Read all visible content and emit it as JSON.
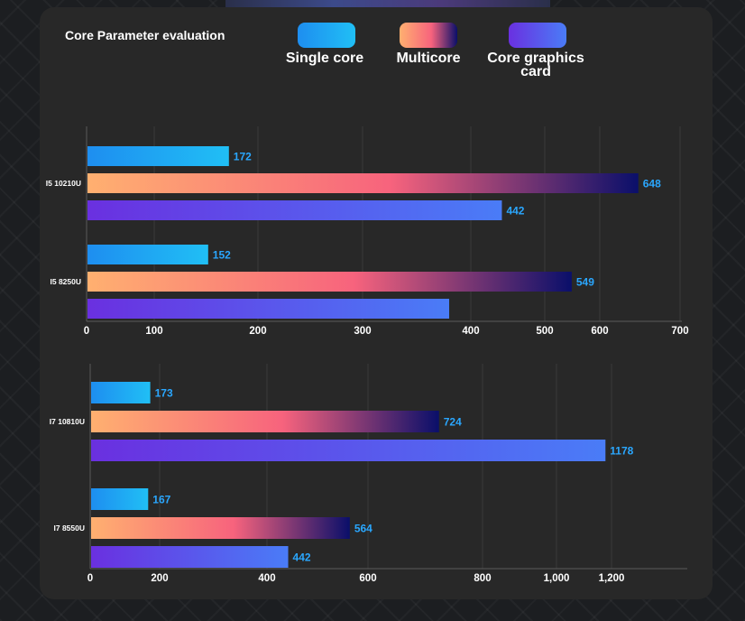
{
  "title": "Core Parameter evaluation",
  "legend": [
    {
      "label": "Single core"
    },
    {
      "label": "Multicore"
    },
    {
      "label": "Core graphics card"
    }
  ],
  "colors": {
    "single": [
      "#1e8ef0",
      "#20bff5"
    ],
    "multi": [
      "#ffb070",
      "#f7637d",
      "#0a0f6a"
    ],
    "gpu": [
      "#6a30e0",
      "#4a7cf7"
    ]
  },
  "chart_data": [
    {
      "type": "bar",
      "orientation": "horizontal",
      "categories": [
        "I5 10210U",
        "I5 8250U"
      ],
      "series": [
        {
          "name": "Single core",
          "values": [
            172,
            152
          ],
          "labels": [
            "172",
            "152"
          ]
        },
        {
          "name": "Multicore",
          "values": [
            648,
            549
          ],
          "labels": [
            "648",
            "549"
          ]
        },
        {
          "name": "Core graphics card",
          "values": [
            442,
            380
          ],
          "labels": [
            "442",
            ""
          ]
        }
      ],
      "ticks": [
        {
          "value": 0,
          "label": "0"
        },
        {
          "value": 100,
          "label": "100"
        },
        {
          "value": 200,
          "label": "200"
        },
        {
          "value": 300,
          "label": "300"
        },
        {
          "value": 400,
          "label": "400"
        },
        {
          "value": 500,
          "label": "500"
        },
        {
          "value": 600,
          "label": "600"
        },
        {
          "value": 700,
          "label": "700"
        }
      ]
    },
    {
      "type": "bar",
      "orientation": "horizontal",
      "categories": [
        "I7 10810U",
        "I7 8550U"
      ],
      "series": [
        {
          "name": "Single core",
          "values": [
            173,
            167
          ],
          "labels": [
            "173",
            "167"
          ]
        },
        {
          "name": "Multicore",
          "values": [
            724,
            564
          ],
          "labels": [
            "724",
            "564"
          ]
        },
        {
          "name": "Core graphics card",
          "values": [
            1178,
            442
          ],
          "labels": [
            "1178",
            "442"
          ]
        }
      ],
      "ticks": [
        {
          "value": 0,
          "label": "0"
        },
        {
          "value": 200,
          "label": "200"
        },
        {
          "value": 400,
          "label": "400"
        },
        {
          "value": 600,
          "label": "600"
        },
        {
          "value": 800,
          "label": "800"
        },
        {
          "value": 1000,
          "label": "1,000"
        },
        {
          "value": 1200,
          "label": "1,200"
        }
      ]
    }
  ]
}
